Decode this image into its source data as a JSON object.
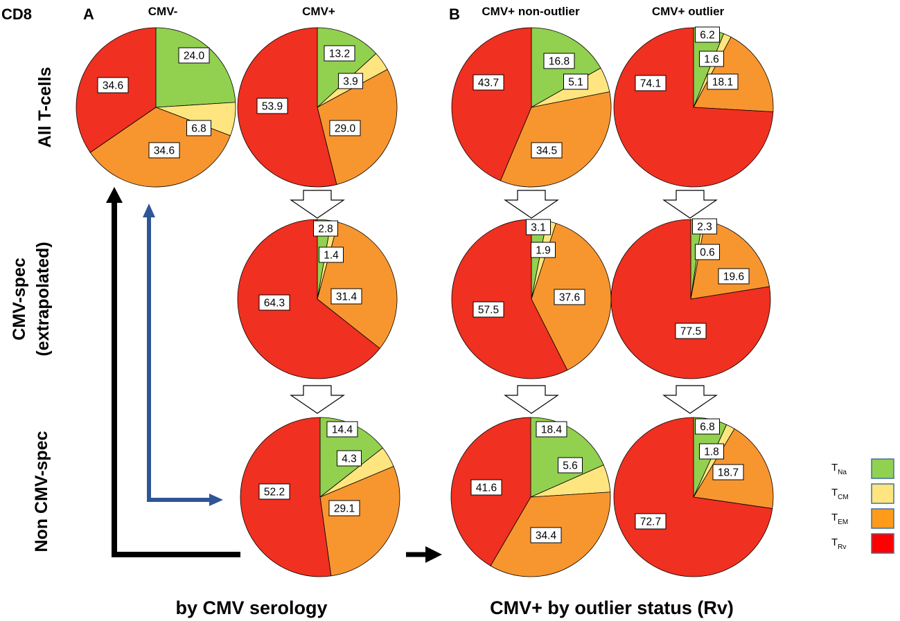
{
  "figure": {
    "corner_label": "CD8",
    "panel_a_label": "A",
    "panel_b_label": "B",
    "column_headers": [
      "CMV-",
      "CMV+",
      "CMV+ non-outlier",
      "CMV+ outlier"
    ],
    "row_labels": [
      "All T-cells",
      "CMV-spec",
      "(extrapolated)",
      "Non CMV-spec"
    ],
    "footer_a": "by CMV serology",
    "footer_b": "CMV+ by outlier status  (Rv)"
  },
  "colors": {
    "TNa": "#92d050",
    "TCM": "#ffe57f",
    "TEM": "#f7962f",
    "TRv": "#f03020",
    "arrow_black": "#000000",
    "arrow_blue": "#2f5597"
  },
  "legend": [
    {
      "main": "T",
      "sub": "Na",
      "color_key": "TNa",
      "fill": "#92d050"
    },
    {
      "main": "T",
      "sub": "CM",
      "color_key": "TCM",
      "fill": "#ffe57f"
    },
    {
      "main": "T",
      "sub": "EM",
      "color_key": "TEM",
      "fill": "#ff9a1a"
    },
    {
      "main": "T",
      "sub": "Rv",
      "color_key": "TRv",
      "fill": "#ff0000"
    }
  ],
  "chart_data": [
    {
      "type": "pie",
      "title": "CMV-",
      "row": "All T-cells",
      "labels": [
        "TNa",
        "TCM",
        "TEM",
        "TRv"
      ],
      "values": [
        24.0,
        6.8,
        34.6,
        34.6
      ],
      "value_labels": [
        "24.0",
        "6.8",
        "34.6",
        "34.6"
      ]
    },
    {
      "type": "pie",
      "title": "CMV+",
      "row": "All T-cells",
      "labels": [
        "TNa",
        "TCM",
        "TEM",
        "TRv"
      ],
      "values": [
        13.2,
        3.9,
        29.0,
        53.9
      ],
      "value_labels": [
        "13.2",
        "3.9",
        "29.0",
        "53.9"
      ]
    },
    {
      "type": "pie",
      "title": "CMV+ non-outlier",
      "row": "All T-cells",
      "labels": [
        "TNa",
        "TCM",
        "TEM",
        "TRv"
      ],
      "values": [
        16.8,
        5.1,
        34.5,
        43.7
      ],
      "value_labels": [
        "16.8",
        "5.1",
        "34.5",
        "43.7"
      ]
    },
    {
      "type": "pie",
      "title": "CMV+ outlier",
      "row": "All T-cells",
      "labels": [
        "TNa",
        "TCM",
        "TEM",
        "TRv"
      ],
      "values": [
        6.2,
        1.6,
        18.1,
        74.1
      ],
      "value_labels": [
        "6.2",
        "1.6",
        "18.1",
        "74.1"
      ]
    },
    {
      "type": "pie",
      "title": "CMV+",
      "row": "CMV-spec (extrapolated)",
      "labels": [
        "TNa",
        "TCM",
        "TEM",
        "TRv"
      ],
      "values": [
        2.8,
        1.4,
        31.4,
        64.3
      ],
      "value_labels": [
        "2.8",
        "1.4",
        "31.4",
        "64.3"
      ]
    },
    {
      "type": "pie",
      "title": "CMV+ non-outlier",
      "row": "CMV-spec (extrapolated)",
      "labels": [
        "TNa",
        "TCM",
        "TEM",
        "TRv"
      ],
      "values": [
        3.1,
        1.9,
        37.6,
        57.5
      ],
      "value_labels": [
        "3.1",
        "1.9",
        "37.6",
        "57.5"
      ]
    },
    {
      "type": "pie",
      "title": "CMV+ outlier",
      "row": "CMV-spec (extrapolated)",
      "labels": [
        "TNa",
        "TCM",
        "TEM",
        "TRv"
      ],
      "values": [
        2.3,
        0.6,
        19.6,
        77.5
      ],
      "value_labels": [
        "2.3",
        "0.6",
        "19.6",
        "77.5"
      ]
    },
    {
      "type": "pie",
      "title": "CMV+",
      "row": "Non CMV-spec",
      "labels": [
        "TNa",
        "TCM",
        "TEM",
        "TRv"
      ],
      "values": [
        14.4,
        4.3,
        29.1,
        52.2
      ],
      "value_labels": [
        "14.4",
        "4.3",
        "29.1",
        "52.2"
      ]
    },
    {
      "type": "pie",
      "title": "CMV+ non-outlier",
      "row": "Non CMV-spec",
      "labels": [
        "TNa",
        "TCM",
        "TEM",
        "TRv"
      ],
      "values": [
        18.4,
        5.6,
        34.4,
        41.6
      ],
      "value_labels": [
        "18.4",
        "5.6",
        "34.4",
        "41.6"
      ]
    },
    {
      "type": "pie",
      "title": "CMV+ outlier",
      "row": "Non CMV-spec",
      "labels": [
        "TNa",
        "TCM",
        "TEM",
        "TRv"
      ],
      "values": [
        6.8,
        1.8,
        18.7,
        72.7
      ],
      "value_labels": [
        "6.8",
        "1.8",
        "18.7",
        "72.7"
      ]
    }
  ]
}
